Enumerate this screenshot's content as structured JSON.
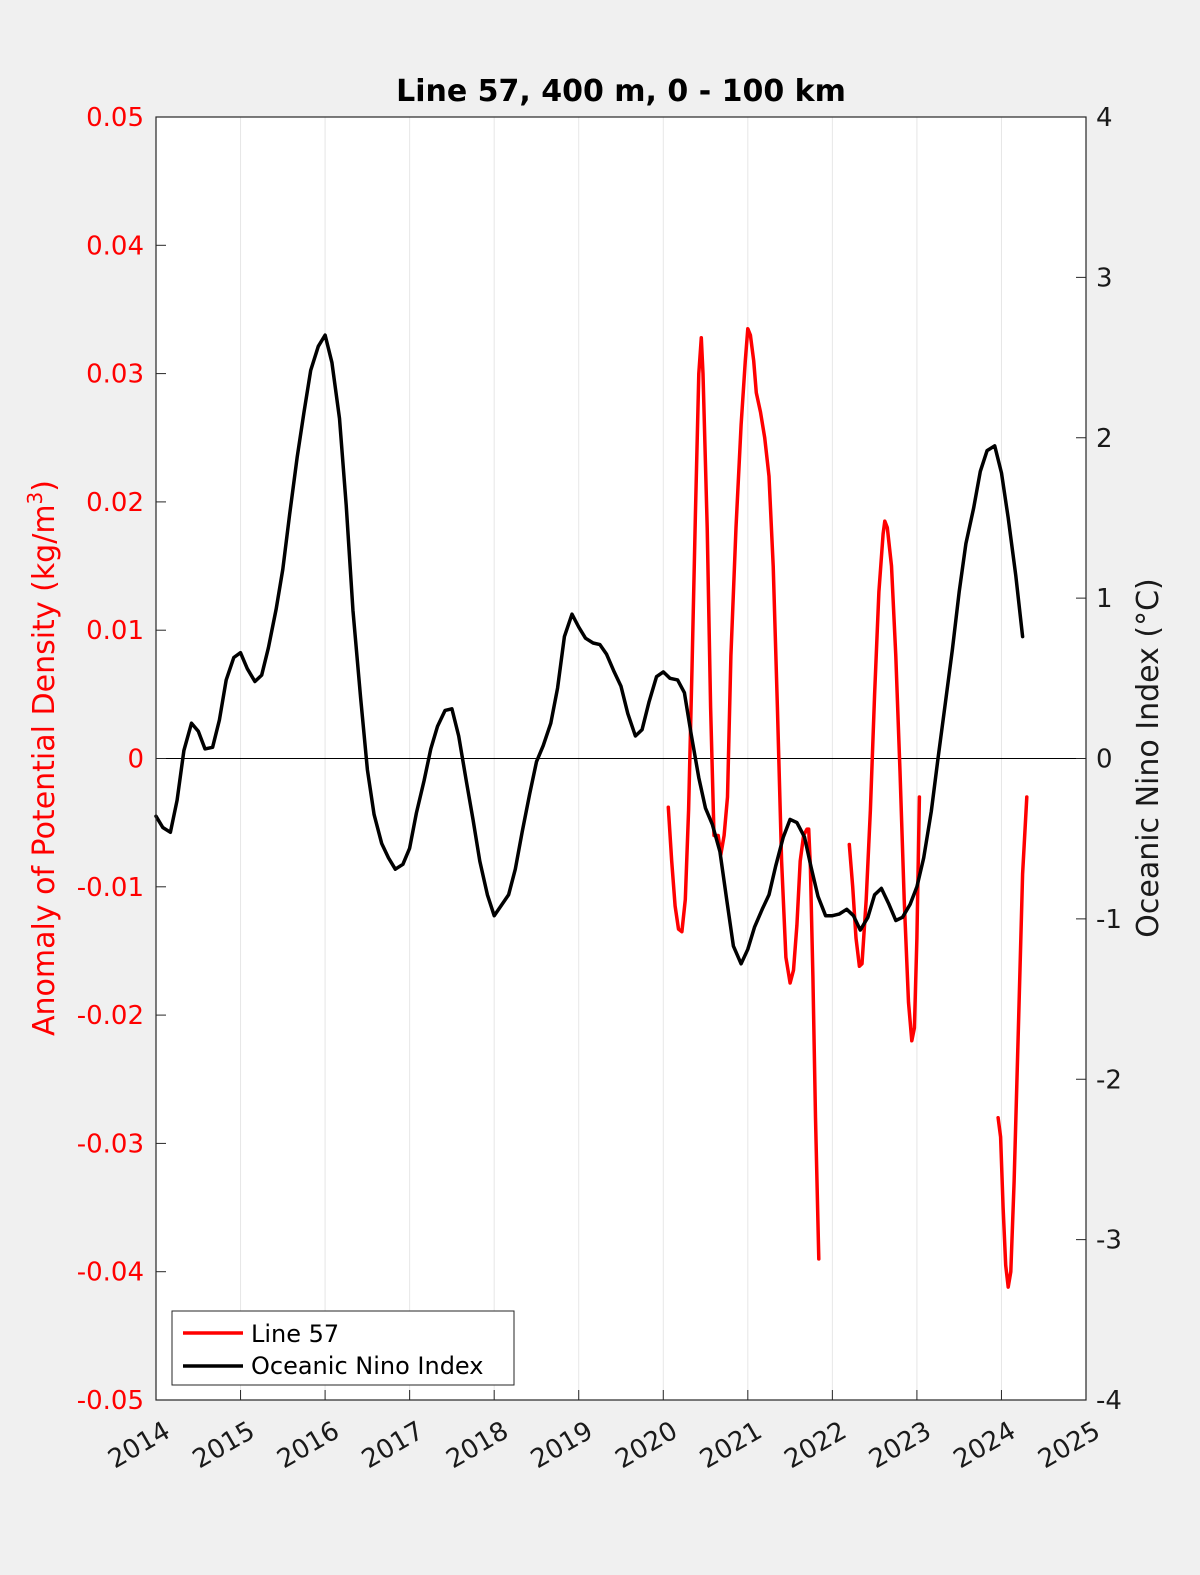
{
  "chart_data": {
    "type": "line",
    "title": "Line 57, 400 m, 0 - 100 km",
    "ylabel_left": "Anomaly of Potential Density (kg/m",
    "ylabel_left_sup": "3",
    "ylabel_left_close": ")",
    "ylabel_right": "Oceanic Nino Index (°C)",
    "xlim": [
      2014,
      2025
    ],
    "ylim_left": [
      -0.05,
      0.05
    ],
    "ylim_right": [
      -4,
      4
    ],
    "x_ticks": [
      "2014",
      "2015",
      "2016",
      "2017",
      "2018",
      "2019",
      "2020",
      "2021",
      "2022",
      "2023",
      "2024",
      "2025"
    ],
    "y_ticks_left": [
      "0.05",
      "0.04",
      "0.03",
      "0.02",
      "0.01",
      "0",
      "-0.01",
      "-0.02",
      "-0.03",
      "-0.04",
      "-0.05"
    ],
    "y_ticks_right": [
      "4",
      "3",
      "2",
      "1",
      "0",
      "-1",
      "-2",
      "-3",
      "-4"
    ],
    "grid": "vertical lines at years",
    "legend_position": "bottom-left",
    "colors": {
      "line57": "#ff0000",
      "oni": "#000000",
      "left_axis": "#ff0000"
    },
    "series": [
      {
        "name": "Line 57",
        "axis": "left",
        "segments": [
          [
            [
              2020.06,
              -0.0038
            ],
            [
              2020.1,
              -0.008
            ],
            [
              2020.14,
              -0.0115
            ],
            [
              2020.18,
              -0.0133
            ],
            [
              2020.22,
              -0.0135
            ],
            [
              2020.26,
              -0.011
            ],
            [
              2020.3,
              -0.004
            ],
            [
              2020.34,
              0.007
            ],
            [
              2020.38,
              0.019
            ],
            [
              2020.42,
              0.03
            ],
            [
              2020.45,
              0.0328
            ],
            [
              2020.47,
              0.03
            ],
            [
              2020.52,
              0.018
            ],
            [
              2020.56,
              0.004
            ],
            [
              2020.6,
              -0.006
            ],
            [
              2020.65,
              -0.006
            ],
            [
              2020.68,
              -0.0075
            ],
            [
              2020.72,
              -0.006
            ],
            [
              2020.76,
              -0.003
            ],
            [
              2020.8,
              0.008
            ],
            [
              2020.86,
              0.018
            ],
            [
              2020.92,
              0.026
            ],
            [
              2020.97,
              0.031
            ],
            [
              2021.0,
              0.0335
            ],
            [
              2021.03,
              0.033
            ],
            [
              2021.07,
              0.031
            ],
            [
              2021.1,
              0.0285
            ],
            [
              2021.15,
              0.027
            ],
            [
              2021.2,
              0.025
            ],
            [
              2021.25,
              0.022
            ],
            [
              2021.3,
              0.015
            ],
            [
              2021.35,
              0.004
            ],
            [
              2021.4,
              -0.008
            ],
            [
              2021.45,
              -0.0155
            ],
            [
              2021.5,
              -0.0175
            ],
            [
              2021.54,
              -0.0165
            ],
            [
              2021.58,
              -0.013
            ],
            [
              2021.62,
              -0.008
            ],
            [
              2021.66,
              -0.006
            ],
            [
              2021.7,
              -0.0055
            ],
            [
              2021.72,
              -0.0055
            ],
            [
              2021.74,
              -0.0085
            ],
            [
              2021.77,
              -0.017
            ],
            [
              2021.8,
              -0.028
            ],
            [
              2021.84,
              -0.039
            ]
          ],
          [
            [
              2022.2,
              -0.0067
            ],
            [
              2022.24,
              -0.01
            ],
            [
              2022.28,
              -0.014
            ],
            [
              2022.32,
              -0.0162
            ],
            [
              2022.35,
              -0.016
            ],
            [
              2022.4,
              -0.011
            ],
            [
              2022.45,
              -0.004
            ],
            [
              2022.5,
              0.005
            ],
            [
              2022.55,
              0.013
            ],
            [
              2022.6,
              0.0175
            ],
            [
              2022.62,
              0.0185
            ],
            [
              2022.65,
              0.018
            ],
            [
              2022.7,
              0.015
            ],
            [
              2022.75,
              0.008
            ],
            [
              2022.8,
              -0.001
            ],
            [
              2022.85,
              -0.011
            ],
            [
              2022.9,
              -0.019
            ],
            [
              2022.94,
              -0.022
            ],
            [
              2022.97,
              -0.021
            ],
            [
              2023.0,
              -0.014
            ],
            [
              2023.03,
              -0.003
            ]
          ],
          [
            [
              2023.96,
              -0.028
            ],
            [
              2023.99,
              -0.0295
            ],
            [
              2024.02,
              -0.035
            ],
            [
              2024.05,
              -0.0395
            ],
            [
              2024.08,
              -0.0412
            ],
            [
              2024.11,
              -0.04
            ],
            [
              2024.15,
              -0.033
            ],
            [
              2024.2,
              -0.021
            ],
            [
              2024.25,
              -0.009
            ],
            [
              2024.3,
              -0.003
            ]
          ]
        ]
      },
      {
        "name": "Oceanic Nino Index",
        "axis": "right",
        "points": [
          [
            2014.0,
            -0.36
          ],
          [
            2014.08,
            -0.43
          ],
          [
            2014.17,
            -0.46
          ],
          [
            2014.25,
            -0.26
          ],
          [
            2014.33,
            0.05
          ],
          [
            2014.42,
            0.22
          ],
          [
            2014.5,
            0.17
          ],
          [
            2014.58,
            0.06
          ],
          [
            2014.67,
            0.07
          ],
          [
            2014.75,
            0.24
          ],
          [
            2014.83,
            0.49
          ],
          [
            2014.92,
            0.63
          ],
          [
            2015.0,
            0.66
          ],
          [
            2015.08,
            0.56
          ],
          [
            2015.17,
            0.48
          ],
          [
            2015.25,
            0.52
          ],
          [
            2015.33,
            0.69
          ],
          [
            2015.42,
            0.93
          ],
          [
            2015.5,
            1.18
          ],
          [
            2015.58,
            1.52
          ],
          [
            2015.67,
            1.88
          ],
          [
            2015.75,
            2.16
          ],
          [
            2015.83,
            2.42
          ],
          [
            2015.92,
            2.57
          ],
          [
            2016.0,
            2.64
          ],
          [
            2016.08,
            2.47
          ],
          [
            2016.17,
            2.12
          ],
          [
            2016.25,
            1.58
          ],
          [
            2016.33,
            0.92
          ],
          [
            2016.42,
            0.38
          ],
          [
            2016.5,
            -0.07
          ],
          [
            2016.58,
            -0.35
          ],
          [
            2016.67,
            -0.53
          ],
          [
            2016.75,
            -0.62
          ],
          [
            2016.83,
            -0.69
          ],
          [
            2016.92,
            -0.66
          ],
          [
            2017.0,
            -0.56
          ],
          [
            2017.08,
            -0.34
          ],
          [
            2017.17,
            -0.14
          ],
          [
            2017.25,
            0.06
          ],
          [
            2017.33,
            0.2
          ],
          [
            2017.42,
            0.3
          ],
          [
            2017.5,
            0.31
          ],
          [
            2017.58,
            0.14
          ],
          [
            2017.67,
            -0.14
          ],
          [
            2017.75,
            -0.38
          ],
          [
            2017.83,
            -0.64
          ],
          [
            2017.92,
            -0.85
          ],
          [
            2018.0,
            -0.98
          ],
          [
            2018.08,
            -0.92
          ],
          [
            2018.17,
            -0.85
          ],
          [
            2018.25,
            -0.69
          ],
          [
            2018.33,
            -0.46
          ],
          [
            2018.42,
            -0.22
          ],
          [
            2018.5,
            -0.02
          ],
          [
            2018.58,
            0.08
          ],
          [
            2018.67,
            0.22
          ],
          [
            2018.75,
            0.44
          ],
          [
            2018.83,
            0.76
          ],
          [
            2018.92,
            0.9
          ],
          [
            2019.0,
            0.82
          ],
          [
            2019.08,
            0.75
          ],
          [
            2019.17,
            0.72
          ],
          [
            2019.25,
            0.71
          ],
          [
            2019.33,
            0.65
          ],
          [
            2019.42,
            0.54
          ],
          [
            2019.5,
            0.45
          ],
          [
            2019.58,
            0.28
          ],
          [
            2019.67,
            0.14
          ],
          [
            2019.75,
            0.18
          ],
          [
            2019.83,
            0.35
          ],
          [
            2019.92,
            0.51
          ],
          [
            2020.0,
            0.54
          ],
          [
            2020.08,
            0.5
          ],
          [
            2020.17,
            0.49
          ],
          [
            2020.25,
            0.41
          ],
          [
            2020.33,
            0.15
          ],
          [
            2020.42,
            -0.12
          ],
          [
            2020.5,
            -0.31
          ],
          [
            2020.58,
            -0.41
          ],
          [
            2020.67,
            -0.58
          ],
          [
            2020.75,
            -0.88
          ],
          [
            2020.83,
            -1.17
          ],
          [
            2020.92,
            -1.28
          ],
          [
            2021.0,
            -1.19
          ],
          [
            2021.08,
            -1.05
          ],
          [
            2021.17,
            -0.94
          ],
          [
            2021.25,
            -0.85
          ],
          [
            2021.33,
            -0.67
          ],
          [
            2021.42,
            -0.49
          ],
          [
            2021.5,
            -0.38
          ],
          [
            2021.58,
            -0.4
          ],
          [
            2021.67,
            -0.49
          ],
          [
            2021.75,
            -0.68
          ],
          [
            2021.83,
            -0.86
          ],
          [
            2021.92,
            -0.98
          ],
          [
            2022.0,
            -0.98
          ],
          [
            2022.08,
            -0.97
          ],
          [
            2022.17,
            -0.94
          ],
          [
            2022.25,
            -0.98
          ],
          [
            2022.33,
            -1.07
          ],
          [
            2022.42,
            -0.99
          ],
          [
            2022.5,
            -0.85
          ],
          [
            2022.58,
            -0.81
          ],
          [
            2022.67,
            -0.91
          ],
          [
            2022.75,
            -1.01
          ],
          [
            2022.83,
            -0.99
          ],
          [
            2022.92,
            -0.91
          ],
          [
            2023.0,
            -0.8
          ],
          [
            2023.08,
            -0.62
          ],
          [
            2023.17,
            -0.33
          ],
          [
            2023.25,
            0.0
          ],
          [
            2023.33,
            0.32
          ],
          [
            2023.42,
            0.68
          ],
          [
            2023.5,
            1.04
          ],
          [
            2023.58,
            1.34
          ],
          [
            2023.67,
            1.56
          ],
          [
            2023.75,
            1.79
          ],
          [
            2023.83,
            1.92
          ],
          [
            2023.92,
            1.95
          ],
          [
            2024.0,
            1.78
          ],
          [
            2024.08,
            1.5
          ],
          [
            2024.17,
            1.14
          ],
          [
            2024.25,
            0.76
          ]
        ]
      }
    ]
  }
}
